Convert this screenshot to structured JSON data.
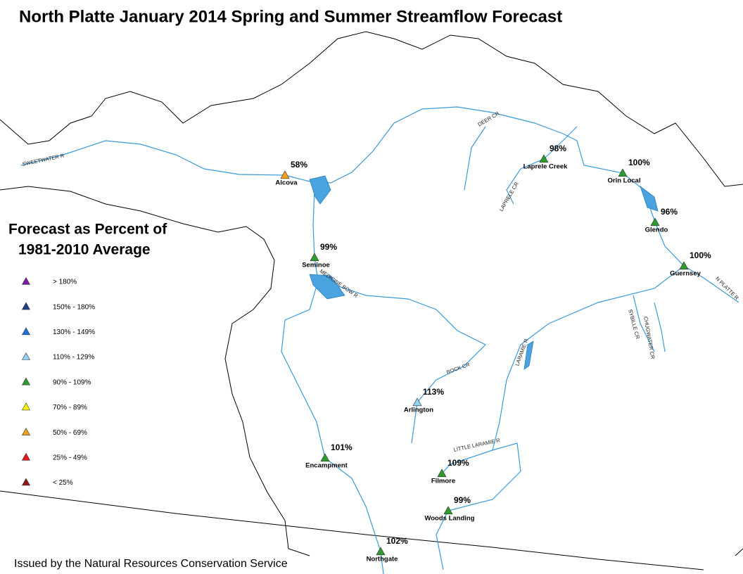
{
  "header": {
    "title": "North Platte January 2014 Spring and Summer Streamflow Forecast"
  },
  "legend": {
    "title_lines": [
      "Forecast as Percent of",
      "1981-2010 Average"
    ],
    "classes": [
      {
        "label": "> 180%",
        "color": "#7a1fa2"
      },
      {
        "label": "150% - 180%",
        "color": "#1f3f8f"
      },
      {
        "label": "130% - 149%",
        "color": "#1e6fd9"
      },
      {
        "label": "110% - 129%",
        "color": "#8fd3f0"
      },
      {
        "label": "90% - 109%",
        "color": "#2e9b2e"
      },
      {
        "label": "70% - 89%",
        "color": "#ffff00"
      },
      {
        "label": "50% - 69%",
        "color": "#f7a01a"
      },
      {
        "label": "25% - 49%",
        "color": "#e8181a"
      },
      {
        "label": "< 25%",
        "color": "#8b1a1a"
      }
    ]
  },
  "stations": [
    {
      "name": "Alcova",
      "percent": "58%",
      "color": "#f7a01a"
    },
    {
      "name": "Laprele Creek",
      "percent": "98%",
      "color": "#2e9b2e"
    },
    {
      "name": "Orin Local",
      "percent": "100%",
      "color": "#2e9b2e"
    },
    {
      "name": "Glendo",
      "percent": "96%",
      "color": "#2e9b2e"
    },
    {
      "name": "Guernsey",
      "percent": "100%",
      "color": "#2e9b2e"
    },
    {
      "name": "Seminoe",
      "percent": "99%",
      "color": "#2e9b2e"
    },
    {
      "name": "Arlington",
      "percent": "113%",
      "color": "#8fd3f0"
    },
    {
      "name": "Encampment",
      "percent": "101%",
      "color": "#2e9b2e"
    },
    {
      "name": "Filmore",
      "percent": "109%",
      "color": "#2e9b2e"
    },
    {
      "name": "Woods Landing",
      "percent": "99%",
      "color": "#2e9b2e"
    },
    {
      "name": "Northgate",
      "percent": "102%",
      "color": "#2e9b2e"
    }
  ],
  "rivers": [
    "SWEETWATER R",
    "DEER CR",
    "LAPRELE CR",
    "MEDICINE BOW R",
    "LARAMIE R",
    "N PLATTE R",
    "SYBILLE CR",
    "CHUGWATER CR",
    "ROCK CR",
    "LITTLE LARAMIE R"
  ],
  "footer": {
    "text": "Issued by the Natural Resources Conservation Service"
  }
}
